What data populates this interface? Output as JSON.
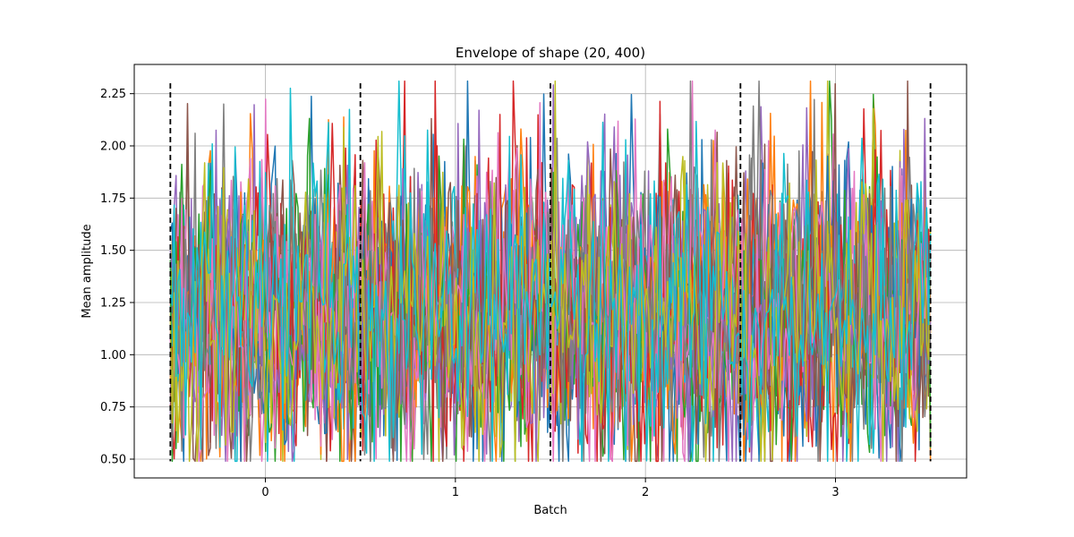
{
  "chart_data": {
    "type": "line",
    "title": "Envelope of shape (20, 400)",
    "xlabel": "Batch",
    "ylabel": "Mean amplitude",
    "xlim": [
      -0.69,
      3.69
    ],
    "ylim": [
      0.41,
      2.39
    ],
    "xticks": [
      0,
      1,
      2,
      3
    ],
    "xtick_labels": [
      "0",
      "1",
      "2",
      "3"
    ],
    "yticks": [
      0.5,
      0.75,
      1.0,
      1.25,
      1.5,
      1.75,
      2.0,
      2.25
    ],
    "ytick_labels": [
      "0.50",
      "0.75",
      "1.00",
      "1.25",
      "1.50",
      "1.75",
      "2.00",
      "2.25"
    ],
    "grid": true,
    "legend": "none",
    "n_series": 20,
    "points_per_series": 400,
    "x_range": [
      -0.5,
      3.5
    ],
    "value_range": [
      0.49,
      2.31
    ],
    "series_colors": [
      "#1f77b4",
      "#ff7f0e",
      "#2ca02c",
      "#d62728",
      "#9467bd",
      "#8c564b",
      "#e377c2",
      "#7f7f7f",
      "#bcbd22",
      "#17becf",
      "#1f77b4",
      "#ff7f0e",
      "#2ca02c",
      "#d62728",
      "#9467bd",
      "#8c564b",
      "#e377c2",
      "#7f7f7f",
      "#bcbd22",
      "#17becf"
    ],
    "batch_boundaries": {
      "x": [
        -0.5,
        0.5,
        1.5,
        2.5,
        3.5
      ],
      "y_range": [
        0.49,
        2.3
      ],
      "color": "#000000",
      "style": "dashed"
    }
  }
}
